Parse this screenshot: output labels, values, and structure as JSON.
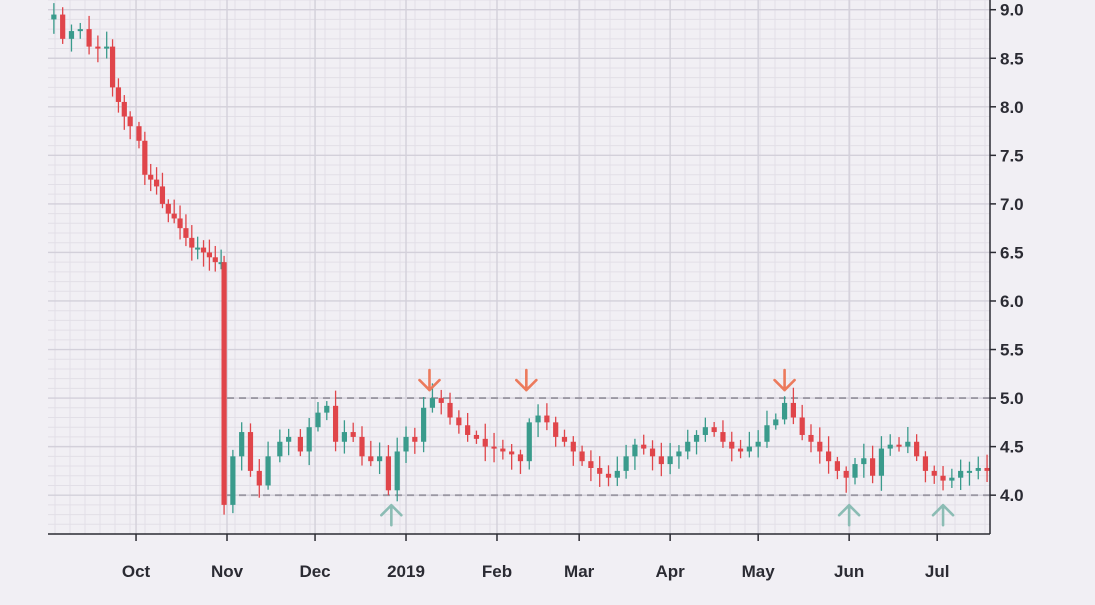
{
  "chart_data": {
    "type": "candlestick",
    "title": "",
    "xlabel": "",
    "ylabel": "",
    "ylim": [
      3.6,
      9.1
    ],
    "yticks": [
      "4.0",
      "4.5",
      "5.0",
      "5.5",
      "6.0",
      "6.5",
      "7.0",
      "7.5",
      "8.0",
      "8.5",
      "9.0"
    ],
    "x_tick_labels": [
      "Oct",
      "Nov",
      "Dec",
      "2019",
      "Feb",
      "Mar",
      "Apr",
      "May",
      "Jun",
      "Jul"
    ],
    "x_tick_dates": [
      "2018-10-01",
      "2018-11-01",
      "2018-12-01",
      "2019-01-01",
      "2019-02-01",
      "2019-03-01",
      "2019-04-01",
      "2019-05-01",
      "2019-06-01",
      "2019-07-01"
    ],
    "x_range": [
      "2018-09-01",
      "2019-07-19"
    ],
    "grid": true,
    "up_color": "#3a9b8c",
    "down_color": "#e0454a",
    "resistance_level": 5.0,
    "support_level": 4.0,
    "level_line_start": "2018-11-01",
    "down_arrow_color": "#ec7a5c",
    "up_arrow_color": "#8bbcb4",
    "resistance_touches": [
      "2019-01-09",
      "2019-02-11",
      "2019-05-10"
    ],
    "support_touches": [
      "2018-12-27",
      "2019-06-01",
      "2019-07-03"
    ],
    "series_close": [
      [
        "2018-09-03",
        8.95
      ],
      [
        "2018-09-06",
        8.7
      ],
      [
        "2018-09-09",
        8.78
      ],
      [
        "2018-09-12",
        8.8
      ],
      [
        "2018-09-15",
        8.62
      ],
      [
        "2018-09-18",
        8.6
      ],
      [
        "2018-09-21",
        8.62
      ],
      [
        "2018-09-23",
        8.2
      ],
      [
        "2018-09-25",
        8.05
      ],
      [
        "2018-09-27",
        7.9
      ],
      [
        "2018-09-29",
        7.8
      ],
      [
        "2018-10-02",
        7.65
      ],
      [
        "2018-10-04",
        7.3
      ],
      [
        "2018-10-06",
        7.25
      ],
      [
        "2018-10-08",
        7.18
      ],
      [
        "2018-10-10",
        7.0
      ],
      [
        "2018-10-12",
        6.9
      ],
      [
        "2018-10-14",
        6.85
      ],
      [
        "2018-10-16",
        6.75
      ],
      [
        "2018-10-18",
        6.65
      ],
      [
        "2018-10-20",
        6.55
      ],
      [
        "2018-10-22",
        6.55
      ],
      [
        "2018-10-24",
        6.5
      ],
      [
        "2018-10-26",
        6.45
      ],
      [
        "2018-10-28",
        6.4
      ],
      [
        "2018-10-30",
        6.4
      ],
      [
        "2018-10-31",
        3.9
      ],
      [
        "2018-11-03",
        4.4
      ],
      [
        "2018-11-06",
        4.65
      ],
      [
        "2018-11-09",
        4.25
      ],
      [
        "2018-11-12",
        4.1
      ],
      [
        "2018-11-15",
        4.4
      ],
      [
        "2018-11-19",
        4.55
      ],
      [
        "2018-11-22",
        4.6
      ],
      [
        "2018-11-26",
        4.45
      ],
      [
        "2018-11-29",
        4.7
      ],
      [
        "2018-12-02",
        4.85
      ],
      [
        "2018-12-05",
        4.92
      ],
      [
        "2018-12-08",
        4.55
      ],
      [
        "2018-12-11",
        4.65
      ],
      [
        "2018-12-14",
        4.6
      ],
      [
        "2018-12-17",
        4.4
      ],
      [
        "2018-12-20",
        4.35
      ],
      [
        "2018-12-23",
        4.4
      ],
      [
        "2018-12-26",
        4.05
      ],
      [
        "2018-12-29",
        4.45
      ],
      [
        "2019-01-01",
        4.6
      ],
      [
        "2019-01-04",
        4.55
      ],
      [
        "2019-01-07",
        4.9
      ],
      [
        "2019-01-10",
        5.0
      ],
      [
        "2019-01-13",
        4.95
      ],
      [
        "2019-01-16",
        4.8
      ],
      [
        "2019-01-19",
        4.72
      ],
      [
        "2019-01-22",
        4.62
      ],
      [
        "2019-01-25",
        4.58
      ],
      [
        "2019-01-28",
        4.5
      ],
      [
        "2019-01-31",
        4.48
      ],
      [
        "2019-02-03",
        4.45
      ],
      [
        "2019-02-06",
        4.42
      ],
      [
        "2019-02-09",
        4.35
      ],
      [
        "2019-02-12",
        4.75
      ],
      [
        "2019-02-15",
        4.82
      ],
      [
        "2019-02-18",
        4.75
      ],
      [
        "2019-02-21",
        4.6
      ],
      [
        "2019-02-24",
        4.55
      ],
      [
        "2019-02-27",
        4.45
      ],
      [
        "2019-03-02",
        4.35
      ],
      [
        "2019-03-05",
        4.28
      ],
      [
        "2019-03-08",
        4.22
      ],
      [
        "2019-03-11",
        4.18
      ],
      [
        "2019-03-14",
        4.25
      ],
      [
        "2019-03-17",
        4.4
      ],
      [
        "2019-03-20",
        4.52
      ],
      [
        "2019-03-23",
        4.48
      ],
      [
        "2019-03-26",
        4.4
      ],
      [
        "2019-03-29",
        4.32
      ],
      [
        "2019-04-01",
        4.4
      ],
      [
        "2019-04-04",
        4.45
      ],
      [
        "2019-04-07",
        4.55
      ],
      [
        "2019-04-10",
        4.62
      ],
      [
        "2019-04-13",
        4.7
      ],
      [
        "2019-04-16",
        4.65
      ],
      [
        "2019-04-19",
        4.55
      ],
      [
        "2019-04-22",
        4.48
      ],
      [
        "2019-04-25",
        4.45
      ],
      [
        "2019-04-28",
        4.5
      ],
      [
        "2019-05-01",
        4.55
      ],
      [
        "2019-05-04",
        4.72
      ],
      [
        "2019-05-07",
        4.78
      ],
      [
        "2019-05-10",
        4.95
      ],
      [
        "2019-05-13",
        4.8
      ],
      [
        "2019-05-16",
        4.62
      ],
      [
        "2019-05-19",
        4.55
      ],
      [
        "2019-05-22",
        4.45
      ],
      [
        "2019-05-25",
        4.35
      ],
      [
        "2019-05-28",
        4.25
      ],
      [
        "2019-05-31",
        4.18
      ],
      [
        "2019-06-03",
        4.32
      ],
      [
        "2019-06-06",
        4.38
      ],
      [
        "2019-06-09",
        4.2
      ],
      [
        "2019-06-12",
        4.48
      ],
      [
        "2019-06-15",
        4.52
      ],
      [
        "2019-06-18",
        4.5
      ],
      [
        "2019-06-21",
        4.55
      ],
      [
        "2019-06-24",
        4.4
      ],
      [
        "2019-06-27",
        4.25
      ],
      [
        "2019-06-30",
        4.2
      ],
      [
        "2019-07-03",
        4.15
      ],
      [
        "2019-07-06",
        4.18
      ],
      [
        "2019-07-09",
        4.25
      ],
      [
        "2019-07-12",
        4.25
      ],
      [
        "2019-07-15",
        4.28
      ],
      [
        "2019-07-18",
        4.25
      ]
    ]
  }
}
